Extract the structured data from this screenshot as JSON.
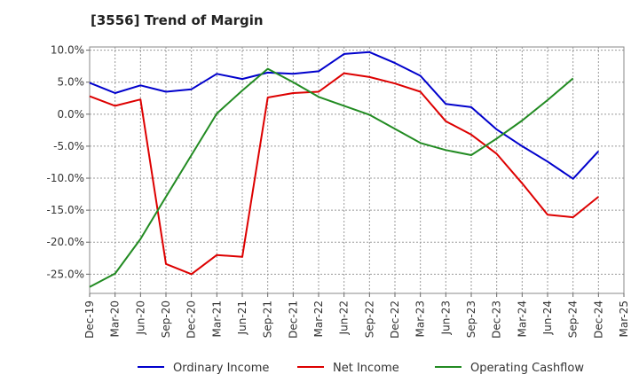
{
  "chart_data": {
    "type": "line",
    "title": "[3556]  Trend of Margin",
    "categories": [
      "Dec-19",
      "Mar-20",
      "Jun-20",
      "Sep-20",
      "Dec-20",
      "Mar-21",
      "Jun-21",
      "Sep-21",
      "Dec-21",
      "Mar-22",
      "Jun-22",
      "Sep-22",
      "Dec-22",
      "Mar-23",
      "Jun-23",
      "Sep-23",
      "Dec-23",
      "Mar-24",
      "Jun-24",
      "Sep-24",
      "Dec-24",
      "Mar-25"
    ],
    "y_ticks": [
      "10.0%",
      "5.0%",
      "0.0%",
      "-5.0%",
      "-10.0%",
      "-15.0%",
      "-20.0%",
      "-25.0%"
    ],
    "y_tick_values": [
      10,
      5,
      0,
      -5,
      -10,
      -15,
      -20,
      -25
    ],
    "ylim": [
      -28,
      10.5
    ],
    "grid": true,
    "legend_position": "bottom",
    "series": [
      {
        "name": "Ordinary Income",
        "color": "#0000cc",
        "values": [
          4.9,
          3.3,
          4.5,
          3.5,
          3.9,
          6.3,
          5.5,
          6.5,
          6.3,
          6.7,
          9.4,
          9.7,
          8.0,
          6.0,
          1.6,
          1.1,
          -2.4,
          -5.0,
          -7.4,
          -10.1,
          -5.8,
          null
        ]
      },
      {
        "name": "Net Income",
        "color": "#dd0000",
        "values": [
          2.8,
          1.3,
          2.3,
          -23.4,
          -25.0,
          -22.0,
          -22.3,
          2.6,
          3.3,
          3.5,
          6.4,
          5.8,
          4.8,
          3.5,
          -1.1,
          -3.2,
          -6.2,
          -10.8,
          -15.7,
          -16.1,
          -12.9,
          null
        ]
      },
      {
        "name": "Operating Cashflow",
        "color": "#228b22",
        "values": [
          -27.0,
          -24.9,
          -19.5,
          -12.9,
          -6.4,
          0.1,
          3.7,
          7.1,
          5.0,
          2.7,
          1.3,
          -0.1,
          -2.3,
          -4.5,
          -5.6,
          -6.4,
          -3.8,
          -1.0,
          2.2,
          5.6,
          null,
          null
        ]
      }
    ]
  }
}
